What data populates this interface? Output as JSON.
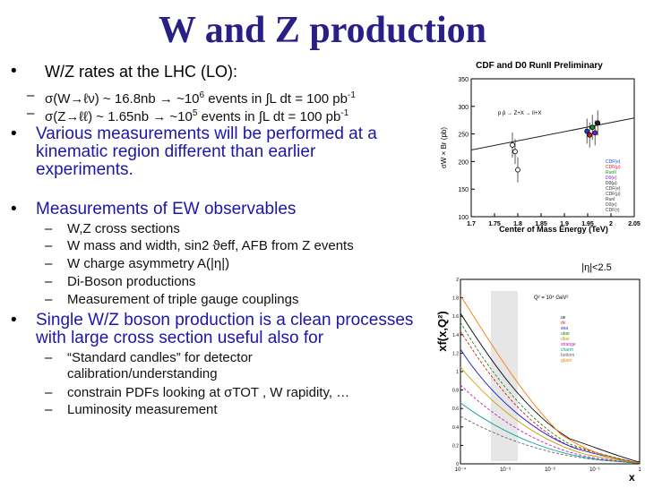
{
  "slide": {
    "title": "W and Z production",
    "bullets": [
      {
        "text": "W/Z rates at the LHC (LO):",
        "subs": [
          {
            "pre": "σ(W→ℓν) ~ 16.8nb → ~10",
            "sup": "6",
            "post": " events in ∫L dt = 100 pb",
            "sup2": "-1"
          },
          {
            "pre": "σ(Z→ℓℓ) ~ 1.65nb → ~10",
            "sup": "5",
            "post": " events in ∫L dt = 100 pb",
            "sup2": "-1"
          }
        ]
      },
      {
        "text": "Various measurements will be performed at a kinematic region different than earlier experiments."
      },
      {
        "text": "Measurements of EW observables",
        "subs": [
          "W,Z cross sections",
          "W mass and width, sin2 ϑeff, AFB from Z events",
          "W charge asymmetry A(|η|)",
          "Di-Boson productions",
          "Measurement of triple gauge couplings"
        ]
      },
      {
        "text": "Single W/Z boson production is a clean processes with large cross section useful also for",
        "subs": [
          "“Standard candles” for detector calibration/understanding",
          "constrain PDFs looking at σTOT , W rapidity, …",
          "Luminosity measurement"
        ]
      }
    ]
  },
  "chart_data": [
    {
      "type": "scatter",
      "title": "CDF and D0 RunII Preliminary",
      "xlabel": "Center of Mass Energy (TeV)",
      "ylabel": "σW × Br (pb)",
      "xlim": [
        1.7,
        2.05
      ],
      "ylim": [
        100,
        350
      ],
      "xticks": [
        "1.7",
        "1.75",
        "1.8",
        "1.85",
        "1.9",
        "1.95",
        "2",
        "2.05"
      ],
      "yticks": [
        "100",
        "150",
        "200",
        "250",
        "300",
        "350"
      ],
      "annotation": "p p̄ → Z+X → ll+X",
      "series": [
        {
          "name": "RunII",
          "points": [
            [
              1.96,
              255
            ],
            [
              1.96,
              248
            ],
            [
              1.96,
              262
            ],
            [
              1.96,
              252
            ],
            [
              1.96,
              270
            ]
          ]
        },
        {
          "name": "RunI",
          "points": [
            [
              1.8,
              230
            ],
            [
              1.8,
              218
            ],
            [
              1.8,
              185
            ]
          ]
        }
      ],
      "curve": [
        [
          1.7,
          221
        ],
        [
          2.05,
          279
        ]
      ],
      "legend": [
        "CDF(e)",
        "CDF(μ)",
        "RunII",
        "D0(e)",
        "D0(μ)",
        "CDF(e)",
        "CDF(μ)",
        "RunI",
        "D0(e)",
        "CDF(τ)"
      ]
    },
    {
      "type": "line",
      "title": "|η|<2.5",
      "xlabel": "x",
      "ylabel": "xf(x,Q²)",
      "xscale": "log",
      "xticks": [
        "10⁻⁴",
        "10⁻³",
        "10⁻²",
        "10⁻¹",
        "1"
      ],
      "yticks": [
        "0",
        "0.2",
        "0.4",
        "0.6",
        "0.8",
        "1",
        "1.2",
        "1.4",
        "1.6",
        "1.8",
        "2"
      ],
      "annotation": "Q² = 10⁴ GeV²",
      "legend": [
        "uv",
        "dv",
        "sea",
        "ubar",
        "dbar",
        "strange",
        "charm",
        "bottom",
        "gluon"
      ]
    }
  ]
}
